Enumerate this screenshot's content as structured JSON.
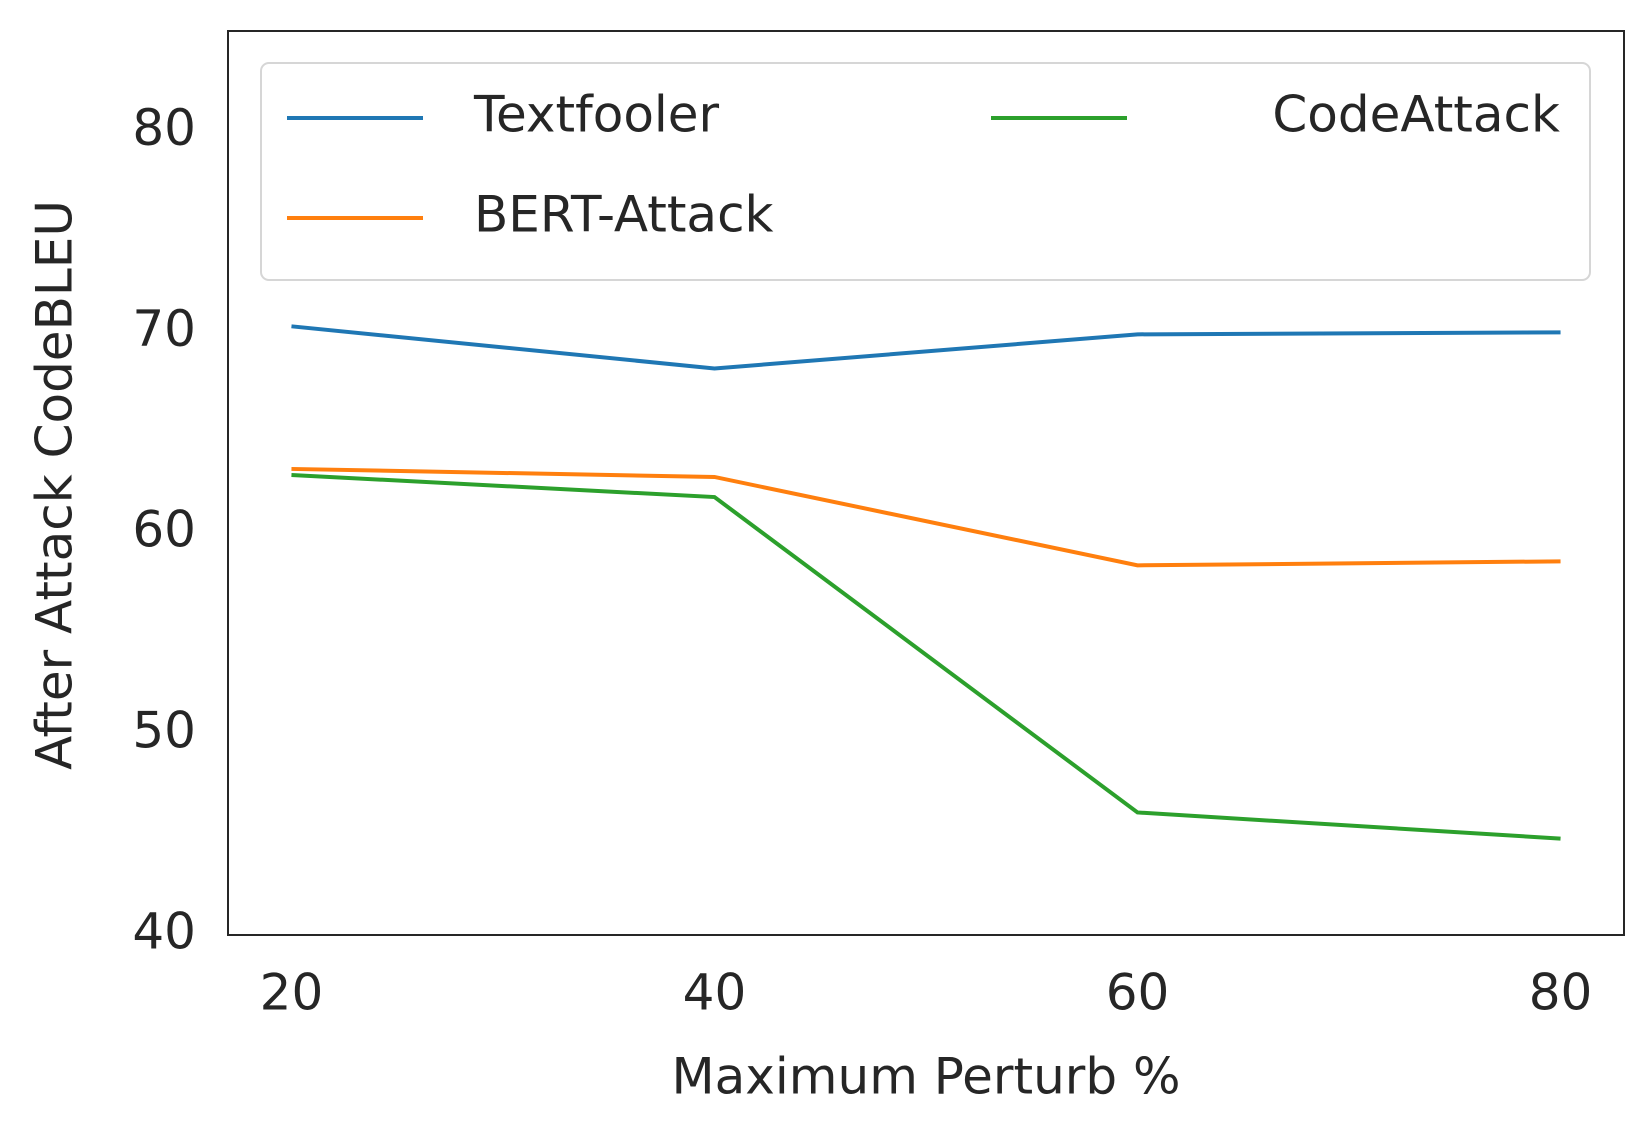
{
  "chart_data": {
    "type": "line",
    "x_label": "Maximum Perturb %",
    "y_label": "After Attack CodeBLEU",
    "x": [
      20,
      40,
      60,
      80
    ],
    "series": [
      {
        "name": "Textfooler",
        "color": "#1f77b4",
        "values": [
          70.3,
          68.2,
          69.9,
          70.0
        ]
      },
      {
        "name": "BERT-Attack",
        "color": "#ff7f0e",
        "values": [
          63.2,
          62.8,
          58.4,
          58.6
        ]
      },
      {
        "name": "CodeAttack",
        "color": "#2ca02c",
        "values": [
          62.9,
          61.8,
          46.1,
          44.8
        ]
      }
    ],
    "xlim": [
      17,
      83
    ],
    "ylim": [
      40,
      85
    ],
    "xticks": [
      20,
      40,
      60,
      80
    ],
    "yticks": [
      40,
      50,
      60,
      70,
      80
    ],
    "grid": false,
    "legend": true,
    "legend_columns": 2
  }
}
